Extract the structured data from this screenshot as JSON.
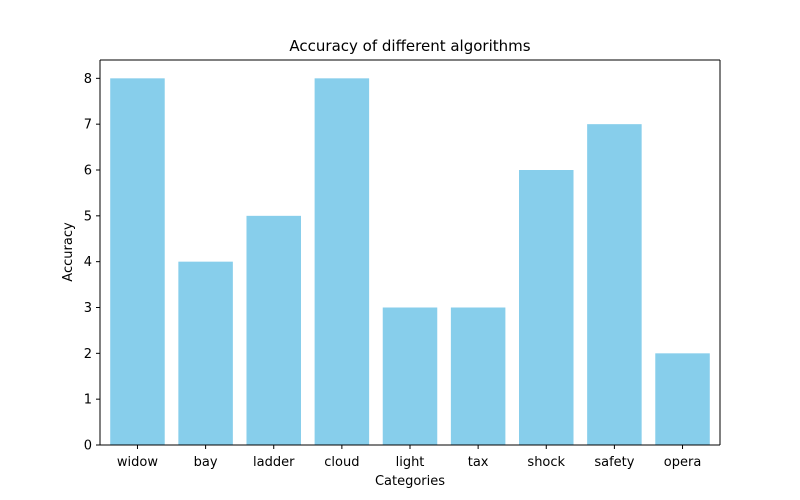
{
  "chart_data": {
    "type": "bar",
    "title": "Accuracy of different algorithms",
    "xlabel": "Categories",
    "ylabel": "Accuracy",
    "categories": [
      "widow",
      "bay",
      "ladder",
      "cloud",
      "light",
      "tax",
      "shock",
      "safety",
      "opera"
    ],
    "values": [
      8,
      4,
      5,
      8,
      3,
      3,
      6,
      7,
      2
    ],
    "ylim": [
      0,
      8.4
    ],
    "yticks": [
      "0",
      "1",
      "2",
      "3",
      "4",
      "5",
      "6",
      "7",
      "8"
    ],
    "grid": false,
    "legend": "none",
    "colors": {
      "bar": "#87CEEB",
      "axis": "#000000",
      "background": "#ffffff"
    }
  }
}
